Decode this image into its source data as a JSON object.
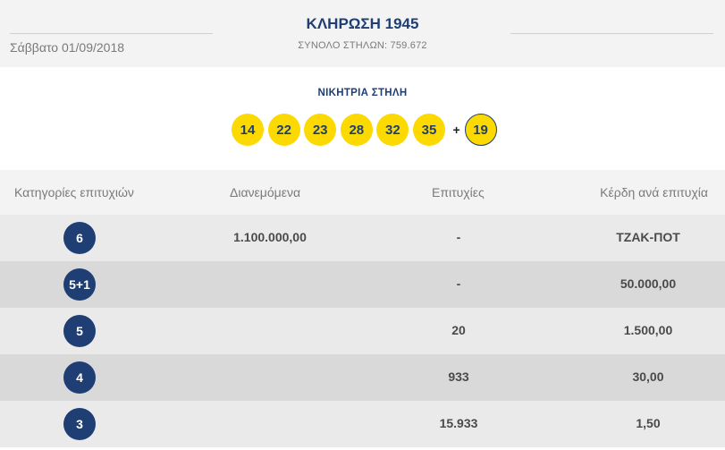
{
  "header": {
    "date": "Σάββατο 01/09/2018",
    "draw_title": "ΚΛΗΡΩΣΗ 1945",
    "total_columns": "ΣΥΝΟΛΟ ΣΤΗΛΩΝ: 759.672"
  },
  "winning": {
    "label": "ΝΙΚΗΤΡΙΑ ΣΤΗΛΗ",
    "numbers": [
      "14",
      "22",
      "23",
      "28",
      "32",
      "35"
    ],
    "plus": "+",
    "bonus": "19"
  },
  "table": {
    "headers": {
      "category": "Κατηγορίες επιτυχιών",
      "distributed": "Διανεμόμενα",
      "winners": "Επιτυχίες",
      "prize": "Κέρδη ανά επιτυχία"
    },
    "rows": [
      {
        "category": "6",
        "distributed": "1.100.000,00",
        "winners": "-",
        "prize": "ΤΖΑΚ-ΠΟΤ"
      },
      {
        "category": "5+1",
        "distributed": "",
        "winners": "-",
        "prize": "50.000,00"
      },
      {
        "category": "5",
        "distributed": "",
        "winners": "20",
        "prize": "1.500,00"
      },
      {
        "category": "4",
        "distributed": "",
        "winners": "933",
        "prize": "30,00"
      },
      {
        "category": "3",
        "distributed": "",
        "winners": "15.933",
        "prize": "1,50"
      }
    ]
  },
  "colors": {
    "navy": "#1e3e74",
    "ball_yellow": "#fcd900",
    "row_light": "#eaeaea",
    "row_dark": "#d9d9d9"
  }
}
